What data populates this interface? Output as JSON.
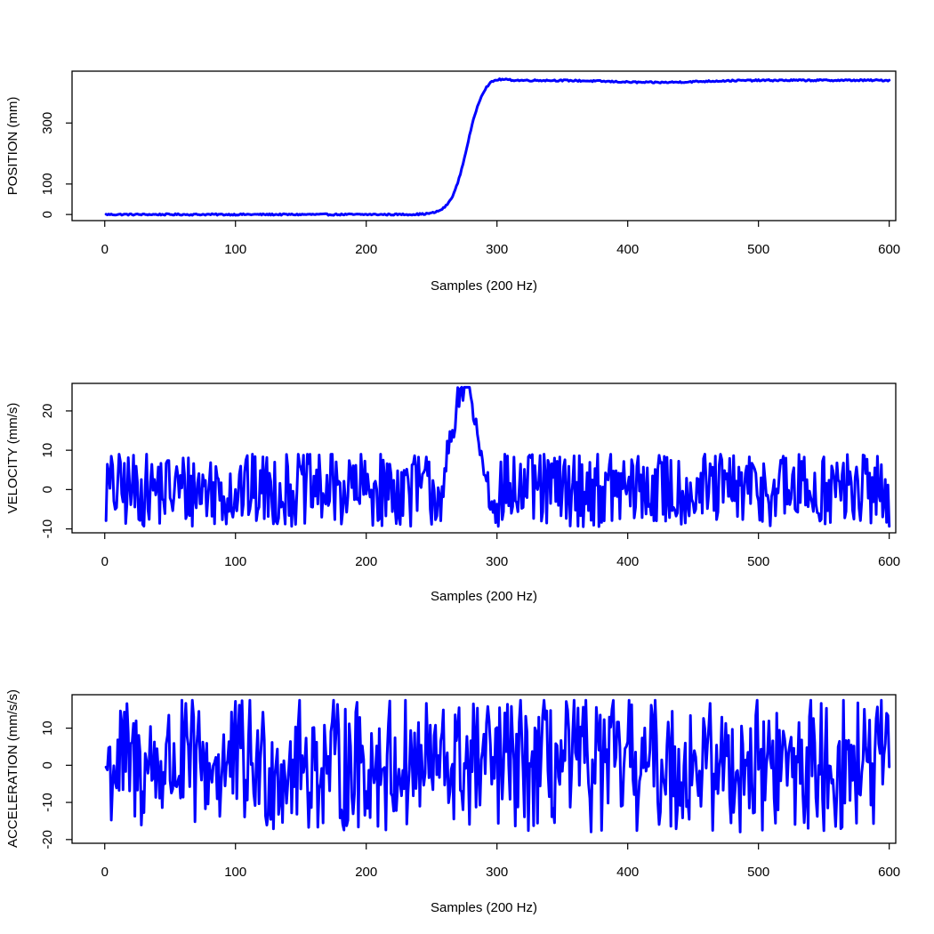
{
  "colors": {
    "series": "#0000ff",
    "axes": "#000000",
    "background": "#ffffff"
  },
  "chart_data": [
    {
      "type": "line",
      "title": "",
      "xlabel": "Samples (200 Hz)",
      "ylabel": "POSITION (mm)",
      "xlim": [
        -25,
        605
      ],
      "ylim": [
        -20,
        470
      ],
      "xticks": [
        0,
        100,
        200,
        300,
        400,
        500,
        600
      ],
      "yticks": [
        0,
        100,
        300
      ],
      "series": [
        {
          "name": "position",
          "generator": "sigmoid-step",
          "x": [
            1,
            600
          ],
          "baseline": 0,
          "plateau": 440,
          "transition_center": 277,
          "transition_width": 6,
          "overshoot": {
            "x": 296,
            "y": 452
          },
          "plateau_dip": {
            "x": 420,
            "y": 433
          },
          "noise_amplitude": 2.5
        }
      ]
    },
    {
      "type": "line",
      "title": "",
      "xlabel": "Samples (200 Hz)",
      "ylabel": "VELOCITY (mm/s)",
      "xlim": [
        -25,
        605
      ],
      "ylim": [
        -11,
        27
      ],
      "xticks": [
        0,
        100,
        200,
        300,
        400,
        500,
        600
      ],
      "yticks": [
        -10,
        0,
        10,
        20
      ],
      "series": [
        {
          "name": "velocity",
          "generator": "noise-with-pulse",
          "x": [
            1,
            600
          ],
          "noise_min": -10,
          "noise_max": 9,
          "pulse": {
            "start": 262,
            "peak_x": 275,
            "peak_y": 26,
            "end": 292
          }
        }
      ]
    },
    {
      "type": "line",
      "title": "",
      "xlabel": "Samples (200 Hz)",
      "ylabel": "ACCELERATION (mm/s/s)",
      "xlim": [
        -25,
        605
      ],
      "ylim": [
        -21,
        19
      ],
      "xticks": [
        0,
        100,
        200,
        300,
        400,
        500,
        600
      ],
      "yticks": [
        -20,
        -10,
        0,
        10
      ],
      "series": [
        {
          "name": "acceleration",
          "generator": "noise",
          "x": [
            1,
            600
          ],
          "noise_min": -19,
          "noise_max": 17.5
        }
      ]
    }
  ]
}
